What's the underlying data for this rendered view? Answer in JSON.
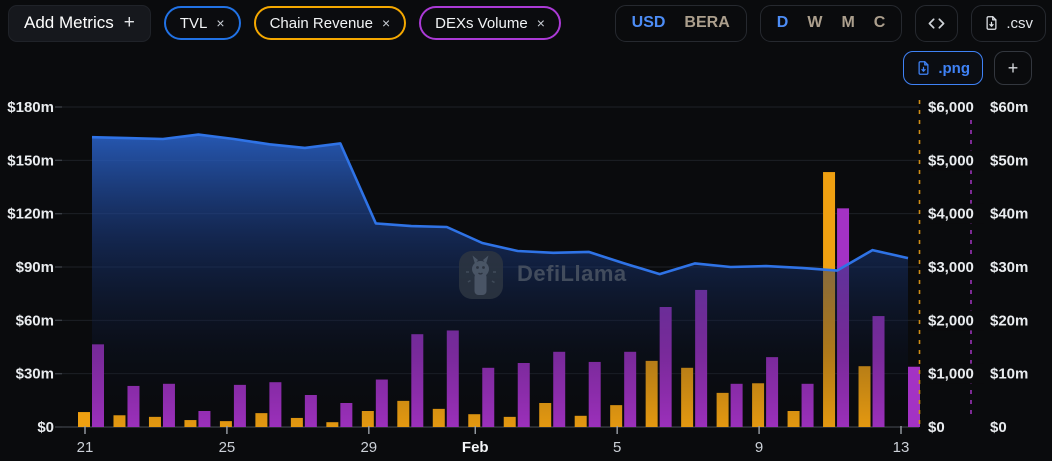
{
  "header": {
    "add_metrics_label": "Add Metrics",
    "add_metrics_plus": "+",
    "metric_pills": [
      {
        "label": "TVL",
        "close": "×",
        "color": "#2172e5"
      },
      {
        "label": "Chain Revenue",
        "close": "×",
        "color": "#f5a800"
      },
      {
        "label": "DEXs Volume",
        "close": "×",
        "color": "#ab3ad6"
      }
    ],
    "currency": {
      "options": [
        "USD",
        "BERA"
      ],
      "selected": "USD"
    },
    "interval": {
      "options": [
        "D",
        "W",
        "M",
        "C"
      ],
      "selected": "D"
    },
    "csv_label": ".csv",
    "png_label": ".png",
    "add_chart_label": "+",
    "accent_blue": "#3f82f6"
  },
  "watermark": {
    "text": "DefiLlama"
  },
  "chart_data": {
    "type": "mixed",
    "x_categories": [
      "Jan 21",
      "Jan 22",
      "Jan 23",
      "Jan 24",
      "Jan 25",
      "Jan 26",
      "Jan 27",
      "Jan 28",
      "Jan 29",
      "Jan 30",
      "Jan 31",
      "Feb 1",
      "Feb 2",
      "Feb 3",
      "Feb 4",
      "Feb 5",
      "Feb 6",
      "Feb 7",
      "Feb 8",
      "Feb 9",
      "Feb 10",
      "Feb 11",
      "Feb 12",
      "Feb 13"
    ],
    "x_ticks": [
      {
        "label": "21",
        "index": 0,
        "bold": false
      },
      {
        "label": "25",
        "index": 4,
        "bold": false
      },
      {
        "label": "29",
        "index": 8,
        "bold": false
      },
      {
        "label": "Feb",
        "index": 11,
        "bold": true
      },
      {
        "label": "5",
        "index": 15,
        "bold": false
      },
      {
        "label": "9",
        "index": 19,
        "bold": false
      },
      {
        "label": "13",
        "index": 23,
        "bold": false
      }
    ],
    "series": [
      {
        "name": "TVL",
        "type": "line",
        "axis": "left",
        "color": "#2f73e6",
        "unit": "USD m",
        "values": [
          163,
          162.5,
          162,
          164.5,
          162,
          159,
          157,
          159.5,
          114.5,
          113,
          112.5,
          103.5,
          99,
          98,
          98.5,
          92,
          86,
          92,
          90,
          90.5,
          89.5,
          88,
          99.5,
          95
        ]
      },
      {
        "name": "Chain Revenue",
        "type": "bar",
        "axis": "right_revenue",
        "color": "#efa011",
        "unit": "USD",
        "values": [
          280,
          220,
          190,
          130,
          110,
          260,
          170,
          90,
          300,
          490,
          340,
          240,
          190,
          450,
          210,
          410,
          1240,
          1110,
          640,
          820,
          300,
          4780,
          1140,
          0
        ]
      },
      {
        "name": "DEXs Volume",
        "type": "bar",
        "axis": "right_volume",
        "color": "#a332c4",
        "unit": "USD m",
        "values": [
          15.5,
          7.7,
          8.1,
          3,
          7.9,
          8.4,
          6,
          4.5,
          8.9,
          17.4,
          18.1,
          11.1,
          12,
          14.1,
          12.2,
          14.1,
          22.5,
          25.7,
          8.1,
          13.1,
          8.1,
          41,
          20.8,
          11.3
        ]
      }
    ],
    "axes": {
      "left": {
        "max": 180,
        "labels": [
          "$180m",
          "$150m",
          "$120m",
          "$90m",
          "$60m",
          "$30m",
          "$0"
        ]
      },
      "right_revenue": {
        "max": 6000,
        "labels": [
          "$6,000",
          "$5,000",
          "$4,000",
          "$3,000",
          "$2,000",
          "$1,000",
          "$0"
        ]
      },
      "right_volume": {
        "max": 60,
        "labels": [
          "$60m",
          "$50m",
          "$40m",
          "$30m",
          "$20m",
          "$10m",
          "$0"
        ]
      }
    },
    "grid": true,
    "legend_position": "none"
  }
}
